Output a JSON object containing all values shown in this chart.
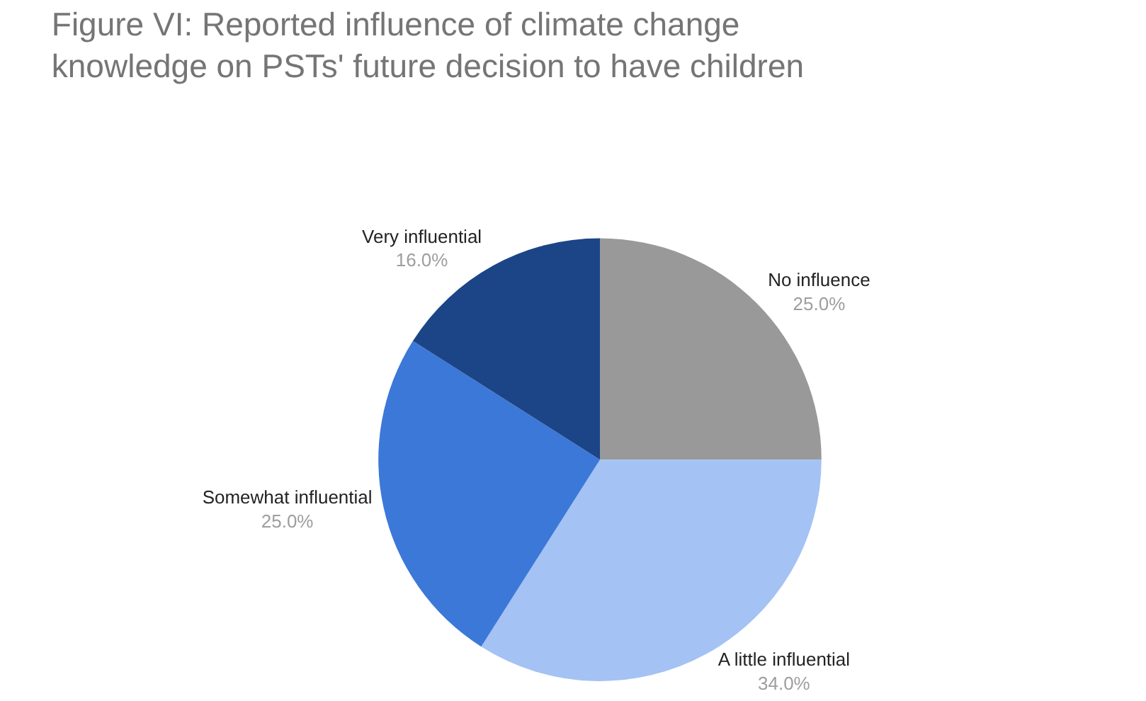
{
  "chart_data": {
    "type": "pie",
    "title": "Figure VI: Reported influence of climate change knowledge on PSTs' future decision to have children",
    "categories": [
      "No influence",
      "A little influential",
      "Somewhat influential",
      "Very influential"
    ],
    "values": [
      25,
      34,
      25,
      16
    ],
    "value_labels": [
      "25.0%",
      "34.0%",
      "25.0%",
      "16.0%"
    ],
    "colors": [
      "#999999",
      "#a4c2f4",
      "#3c78d8",
      "#1c4587"
    ],
    "legend": false
  }
}
